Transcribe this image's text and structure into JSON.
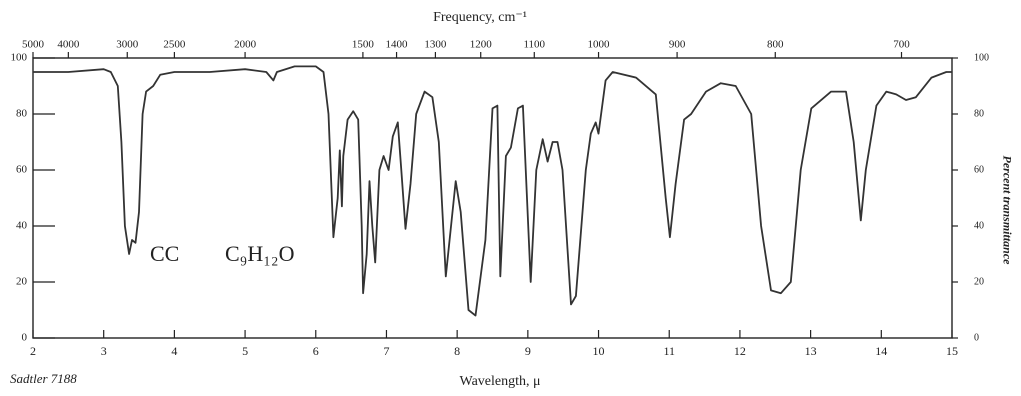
{
  "chart_data": {
    "type": "line",
    "x2label": "Frequency, cm⁻¹",
    "xlabel": "Wavelength, μ",
    "y2label": "Percent transmittance",
    "annotations": [
      "CC",
      "C₉H₁₂O"
    ],
    "source": "Sadtler 7188",
    "color": "#333333",
    "x": [
      2.0,
      2.5,
      3.0,
      3.1,
      3.2,
      3.25,
      3.3,
      3.36,
      3.4,
      3.45,
      3.5,
      3.55,
      3.6,
      3.7,
      3.8,
      4.0,
      4.5,
      5.0,
      5.3,
      5.4,
      5.45,
      5.7,
      6.0,
      6.11,
      6.18,
      6.25,
      6.31,
      6.34,
      6.37,
      6.39,
      6.45,
      6.53,
      6.6,
      6.65,
      6.67,
      6.72,
      6.76,
      6.8,
      6.84,
      6.9,
      6.96,
      7.03,
      7.09,
      7.16,
      7.21,
      7.27,
      7.34,
      7.42,
      7.54,
      7.65,
      7.74,
      7.84,
      7.98,
      8.05,
      8.16,
      8.26,
      8.4,
      8.5,
      8.57,
      8.61,
      8.69,
      8.76,
      8.86,
      8.93,
      9.04,
      9.12,
      9.21,
      9.28,
      9.35,
      9.42,
      9.49,
      9.61,
      9.68,
      9.82,
      9.89,
      9.96,
      10.0,
      10.1,
      10.2,
      10.53,
      10.81,
      10.95,
      11.01,
      11.09,
      11.21,
      11.31,
      11.52,
      11.73,
      11.94,
      12.16,
      12.3,
      12.44,
      12.58,
      12.72,
      12.86,
      13.01,
      13.29,
      13.5,
      13.61,
      13.71,
      13.78,
      13.93,
      14.07,
      14.21,
      14.35,
      14.49,
      14.71,
      14.92,
      15.0
    ],
    "values": [
      95,
      95,
      96,
      95,
      90,
      70,
      40,
      30,
      35,
      34,
      45,
      80,
      88,
      90,
      94,
      95,
      95,
      96,
      95,
      92,
      95,
      97,
      97,
      95,
      80,
      36,
      50,
      67,
      47,
      65,
      78,
      81,
      78,
      40,
      16,
      30,
      56,
      40,
      27,
      60,
      65,
      60,
      72,
      77,
      60,
      39,
      55,
      80,
      88,
      86,
      70,
      22,
      56,
      45,
      10,
      8,
      35,
      82,
      83,
      22,
      65,
      68,
      82,
      83,
      20,
      60,
      71,
      63,
      70,
      70,
      60,
      12,
      15,
      60,
      73,
      77,
      73,
      92,
      95,
      93,
      87,
      50,
      36,
      55,
      78,
      80,
      88,
      91,
      90,
      80,
      40,
      17,
      16,
      20,
      60,
      82,
      88,
      88,
      70,
      42,
      60,
      83,
      88,
      87,
      85,
      86,
      93,
      95,
      95
    ],
    "xlim": [
      2,
      15
    ],
    "xticks": [
      2,
      3,
      4,
      5,
      6,
      7,
      8,
      9,
      10,
      11,
      12,
      13,
      14,
      15
    ],
    "x2ticks": [
      5000,
      4000,
      3000,
      2500,
      2000,
      1500,
      1400,
      1300,
      1200,
      1100,
      1000,
      900,
      800,
      700
    ],
    "ylim": [
      0,
      100
    ],
    "yticks": [
      0,
      20,
      40,
      60,
      80,
      100
    ],
    "y2lim": [
      0,
      100
    ],
    "y2ticks": [
      0,
      20,
      40,
      60,
      80,
      100
    ]
  }
}
